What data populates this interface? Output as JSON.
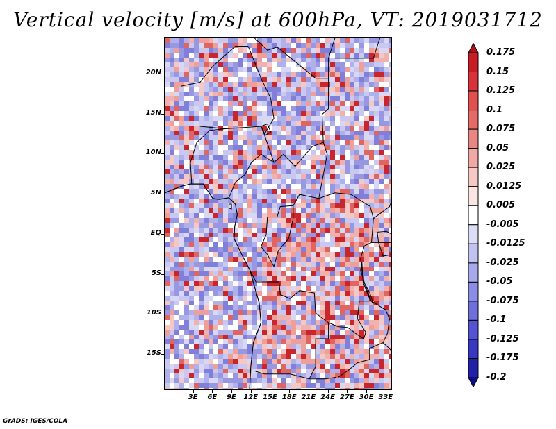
{
  "title": "Vertical velocity [m/s] at 600hPa, VT: 2019031712",
  "credit": "GrADS: IGES/COLA",
  "map": {
    "lat_range": [
      -19.5,
      24.5
    ],
    "lon_range": [
      -1.5,
      34.0
    ],
    "lat_labels": [
      {
        "lat": 20,
        "text": "20N"
      },
      {
        "lat": 15,
        "text": "15N"
      },
      {
        "lat": 10,
        "text": "10N"
      },
      {
        "lat": 5,
        "text": "5N"
      },
      {
        "lat": 0,
        "text": "EQ"
      },
      {
        "lat": -5,
        "text": "5S"
      },
      {
        "lat": -10,
        "text": "10S"
      },
      {
        "lat": -15,
        "text": "15S"
      }
    ],
    "lon_labels": [
      {
        "lon": 3,
        "text": "3E"
      },
      {
        "lon": 6,
        "text": "6E"
      },
      {
        "lon": 9,
        "text": "9E"
      },
      {
        "lon": 12,
        "text": "12E"
      },
      {
        "lon": 15,
        "text": "15E"
      },
      {
        "lon": 18,
        "text": "18E"
      },
      {
        "lon": 21,
        "text": "21E"
      },
      {
        "lon": 24,
        "text": "24E"
      },
      {
        "lon": 27,
        "text": "27E"
      },
      {
        "lon": 30,
        "text": "30E"
      },
      {
        "lon": 33,
        "text": "33E"
      }
    ]
  },
  "colorbar": {
    "labels": [
      "0.175",
      "0.15",
      "0.125",
      "0.1",
      "0.075",
      "0.05",
      "0.025",
      "0.0125",
      "0.005",
      "-0.005",
      "-0.0125",
      "-0.025",
      "-0.05",
      "-0.075",
      "-0.1",
      "-0.125",
      "-0.175",
      "-0.2"
    ],
    "colors": [
      "#b40f19",
      "#c81c24",
      "#d8333a",
      "#e0504f",
      "#e56b67",
      "#ea8682",
      "#f0a8a4",
      "#f6c8c5",
      "#fbe4e2",
      "#ffffff",
      "#dcdcf6",
      "#c2c2f0",
      "#a8a8ec",
      "#8c8ce6",
      "#6f6fdc",
      "#5454d2",
      "#3838c0",
      "#2020a8",
      "#0a0a8c"
    ]
  }
}
